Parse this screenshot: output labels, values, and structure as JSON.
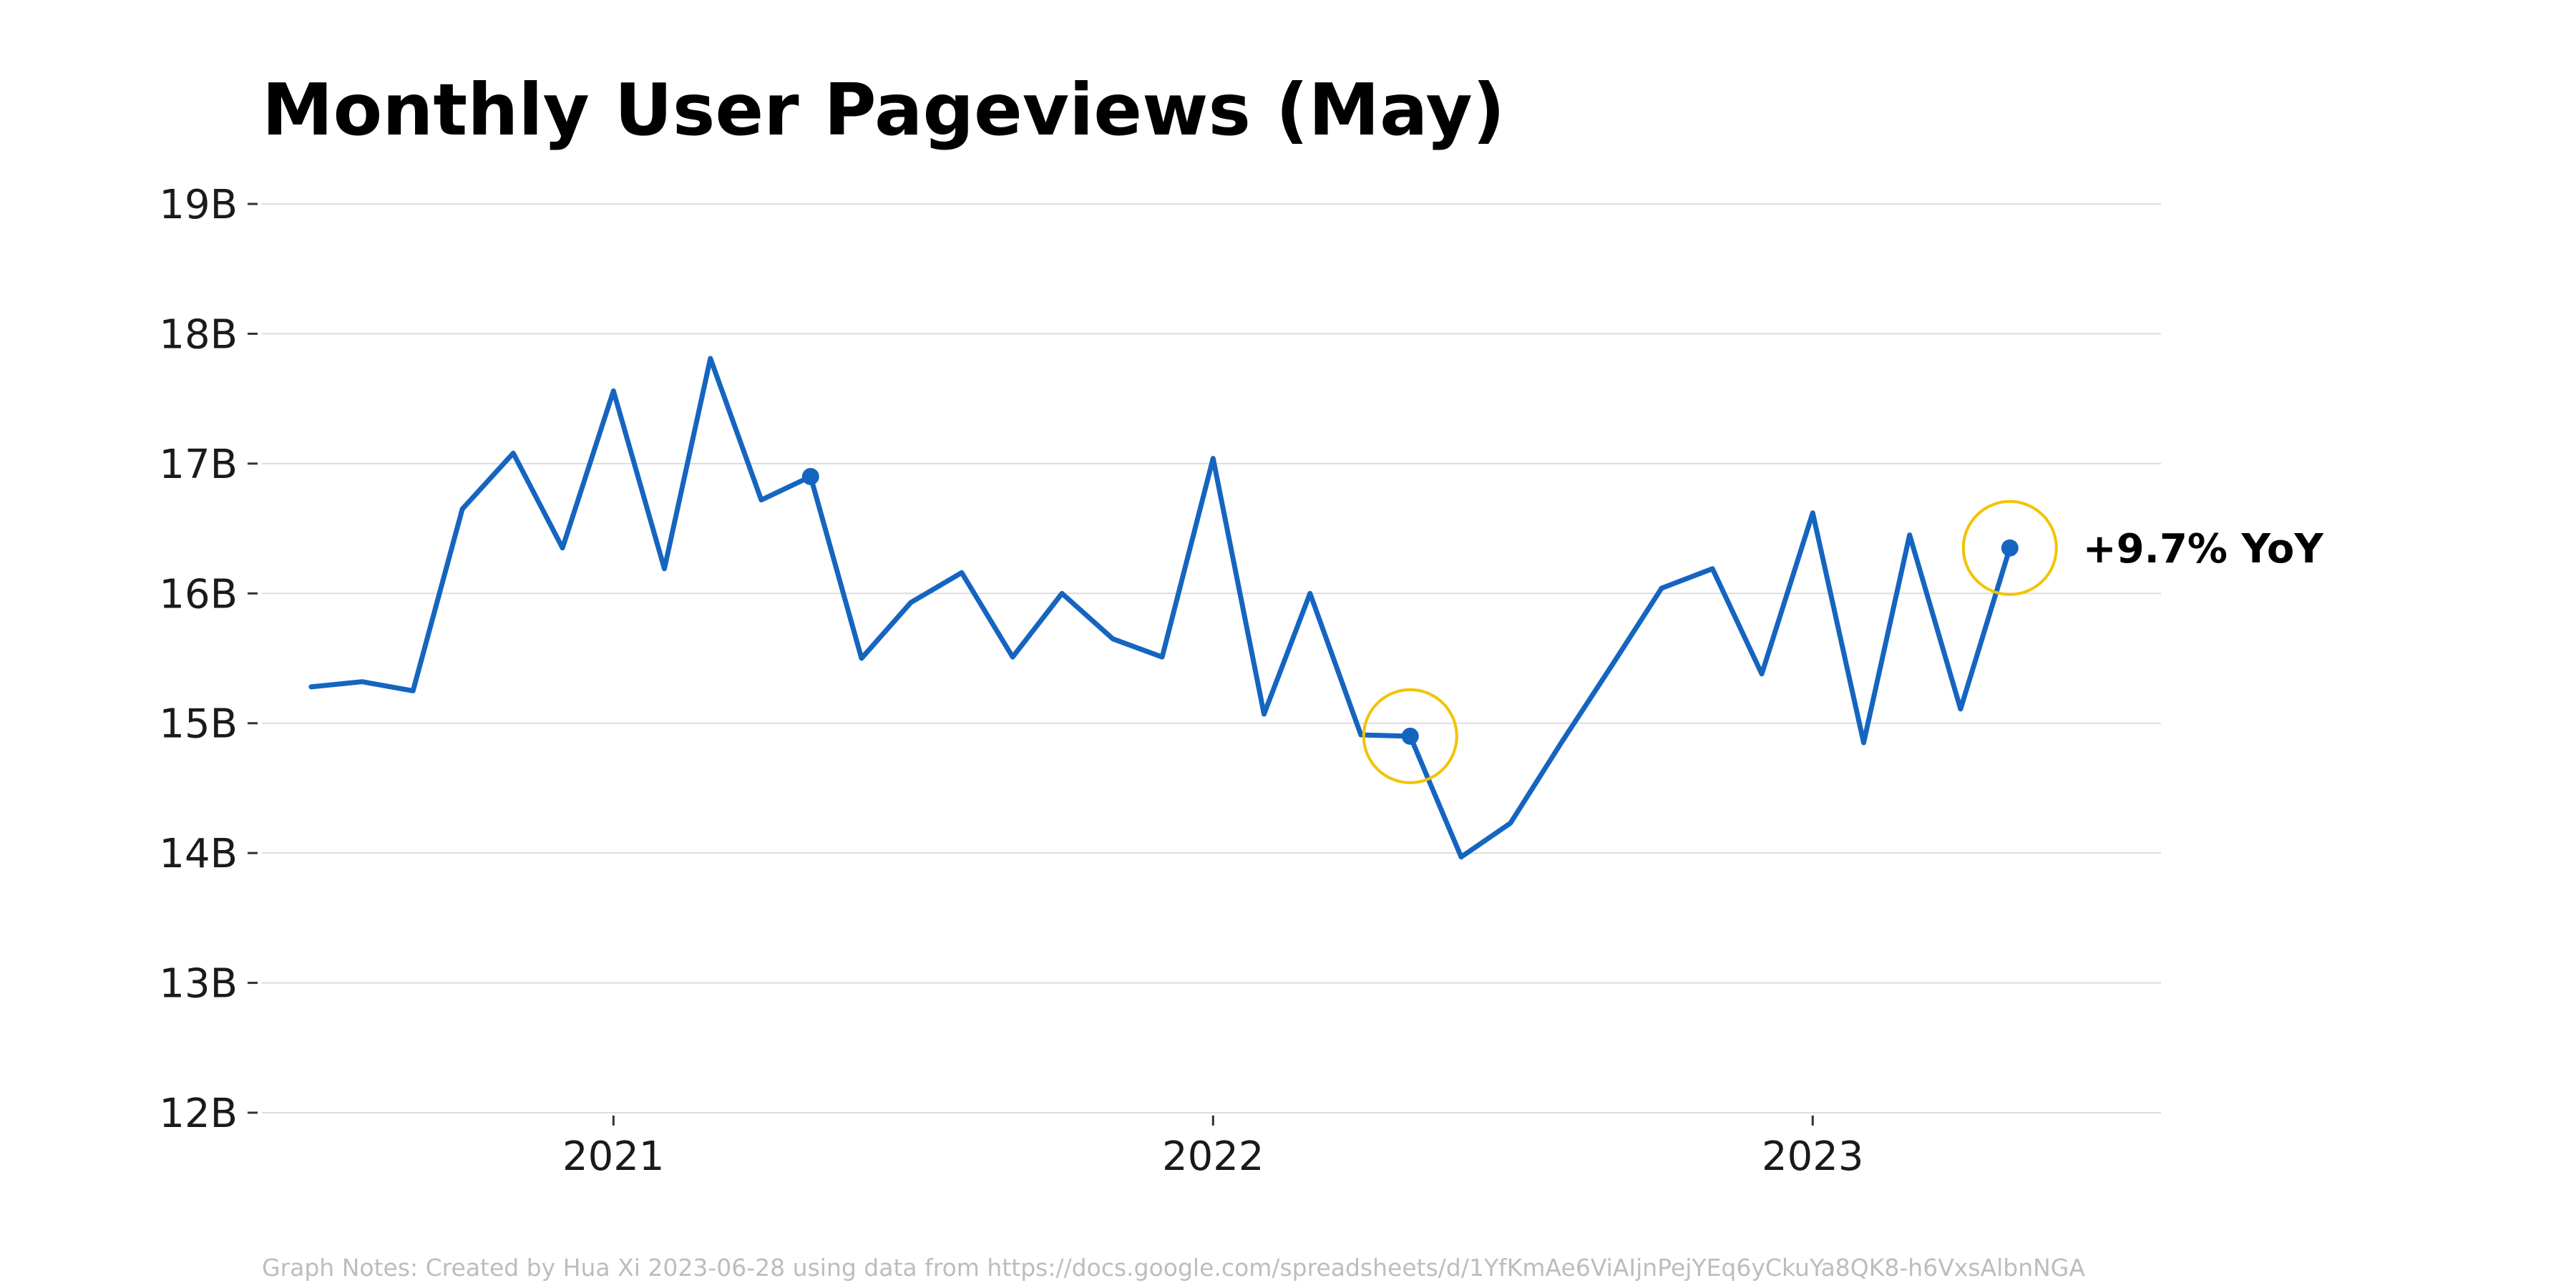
{
  "chart_data": {
    "type": "line",
    "title": "Monthly User Pageviews (May)",
    "xlabel": "",
    "ylabel": "",
    "ylim": [
      12,
      19
    ],
    "y_unit_suffix": "B",
    "yticks": [
      12,
      13,
      14,
      15,
      16,
      17,
      18,
      19
    ],
    "ytick_labels": [
      "12B",
      "13B",
      "14B",
      "15B",
      "16B",
      "17B",
      "18B",
      "19B"
    ],
    "xlim": [
      "2020-06-01",
      "2023-08-01"
    ],
    "xticks": [
      "2021-01-01",
      "2022-01-01",
      "2023-01-01"
    ],
    "xtick_labels": [
      "2021",
      "2022",
      "2023"
    ],
    "grid": true,
    "colors": {
      "line": "#1565c0",
      "highlight_ring": "#f2c300",
      "grid": "#dddddd"
    },
    "series": [
      {
        "x": [
          "2020-07-01",
          "2020-08-01",
          "2020-09-01",
          "2020-10-01",
          "2020-11-01",
          "2020-12-01",
          "2021-01-01",
          "2021-02-01",
          "2021-03-01",
          "2021-04-01",
          "2021-05-01",
          "2021-06-01",
          "2021-07-01",
          "2021-08-01",
          "2021-09-01",
          "2021-10-01",
          "2021-11-01",
          "2021-12-01",
          "2022-01-01",
          "2022-02-01",
          "2022-03-01",
          "2022-04-01",
          "2022-05-01",
          "2022-06-01",
          "2022-07-01",
          "2022-08-01",
          "2022-09-01",
          "2022-10-01",
          "2022-11-01",
          "2022-12-01",
          "2023-01-01",
          "2023-02-01",
          "2023-03-01",
          "2023-04-01",
          "2023-05-01"
        ],
        "values": [
          15.28,
          15.32,
          15.25,
          16.65,
          17.08,
          16.35,
          17.56,
          16.19,
          17.81,
          16.72,
          16.9,
          15.5,
          15.93,
          16.16,
          15.51,
          16.0,
          15.65,
          15.51,
          17.04,
          15.07,
          16.0,
          14.91,
          14.9,
          13.97,
          14.23,
          14.85,
          15.45,
          16.04,
          16.19,
          15.38,
          16.62,
          14.85,
          16.45,
          15.11,
          16.35
        ]
      }
    ],
    "highlight_points": [
      "2021-05-01",
      "2022-05-01",
      "2023-05-01"
    ],
    "ringed_points": [
      "2022-05-01",
      "2023-05-01"
    ],
    "annotations": [
      {
        "text": "+9.7% YoY",
        "x": "2023-05-01",
        "y": 16.35
      }
    ],
    "notes": "Graph Notes: Created by Hua Xi 2023-06-28 using data from https://docs.google.com/spreadsheets/d/1YfKmAe6ViAIjnPejYEq6yCkuYa8QK8-h6VxsAlbnNGA"
  }
}
